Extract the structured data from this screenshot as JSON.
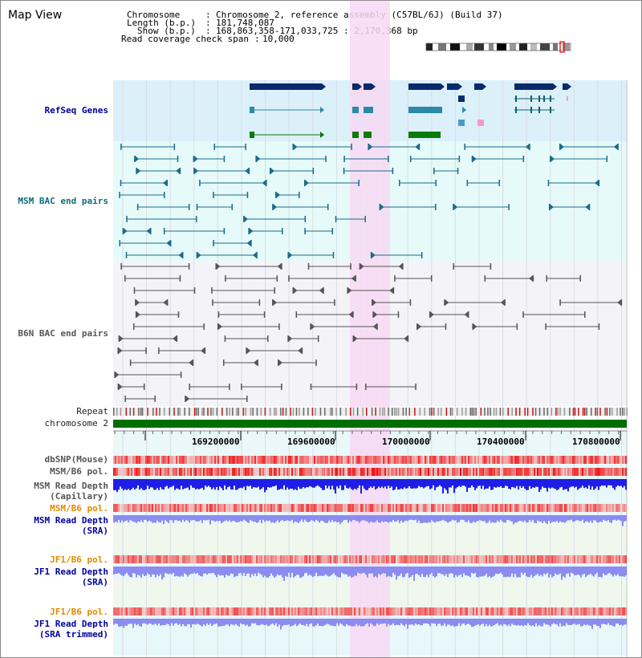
{
  "page": {
    "title": "Map View"
  },
  "info": {
    "chromosome_label": "Chromosome",
    "chromosome_value": "Chromosome 2, reference assembly (C57BL/6J) (Build 37)",
    "length_label": "Length (b.p.)",
    "length_value": "181,748,087",
    "show_label": "Show (b.p.)",
    "show_value": "168,863,358-171,033,725 : 2,170,368 bp",
    "coverage_label": "Read coverage check span",
    "coverage_value": "10,000"
  },
  "tracks": {
    "refseq": "RefSeq Genes",
    "msm_bac": "MSM BAC end pairs",
    "b6n_bac": "B6N BAC end pairs",
    "repeat": "Repeat",
    "chromosome": "chromosome 2",
    "dbsnp": "dbSNP(Mouse)",
    "msm_b6_pol_1": "MSM/B6 pol.",
    "msm_read_depth_cap_1": "MSM Read Depth",
    "msm_read_depth_cap_2": "(Capillary)",
    "msm_b6_pol_2": "MSM/B6 pol.",
    "msm_read_depth_sra_1": "MSM Read Depth",
    "msm_read_depth_sra_2": "(SRA)",
    "jf1_b6_pol_1": "JF1/B6 pol.",
    "jf1_read_depth_sra_1": "JF1 Read Depth",
    "jf1_read_depth_sra_2": "(SRA)",
    "jf1_b6_pol_2": "JF1/B6 pol.",
    "jf1_read_depth_trim_1": "JF1 Read Depth",
    "jf1_read_depth_trim_2": "(SRA trimmed)"
  },
  "axis": {
    "ticks": [
      "169200000",
      "169600000",
      "170000000",
      "170400000",
      "170800000"
    ]
  },
  "colors": {
    "highlight": "#f7d9f3",
    "refseq_bg": "#dcf0fa",
    "msm_bg": "#e6fafa",
    "b6n_bg": "#f4f4f8",
    "chromosome_bar": "#006e00",
    "snp_red": "#e83a3a",
    "depth_dark": "#1e1ee6",
    "depth_light": "#8c8cf0"
  }
}
